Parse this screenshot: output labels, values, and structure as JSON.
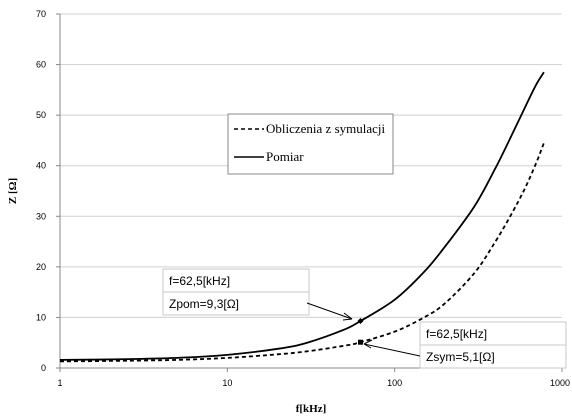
{
  "chart_data": {
    "type": "line",
    "xlabel": "f[kHz]",
    "ylabel": "Z [Ω]",
    "x_scale": "log",
    "xlim": [
      1,
      1000
    ],
    "ylim": [
      0,
      70
    ],
    "x_ticks": [
      1,
      10,
      100,
      1000
    ],
    "x_tick_labels": [
      "1",
      "10",
      "100",
      "1000"
    ],
    "y_ticks": [
      0,
      10,
      20,
      30,
      40,
      50,
      60,
      70
    ],
    "y_tick_labels": [
      "0",
      "10",
      "20",
      "30",
      "40",
      "50",
      "60",
      "70"
    ],
    "grid": "horizontal",
    "legend_position": "center-right",
    "series": [
      {
        "name": "Obliczenia z symulacji",
        "style": "dashed",
        "color": "#000000",
        "x": [
          1,
          2,
          5,
          10,
          20,
          30,
          50,
          62.5,
          100,
          150,
          200,
          300,
          400,
          500,
          600,
          700,
          780
        ],
        "y": [
          1.3,
          1.4,
          1.6,
          2.0,
          2.7,
          3.3,
          4.4,
          5.1,
          7.2,
          10.0,
          12.8,
          18.8,
          25.0,
          30.5,
          35.5,
          40.5,
          44.5
        ]
      },
      {
        "name": "Pomiar",
        "style": "solid",
        "color": "#000000",
        "x": [
          1,
          2,
          5,
          10,
          20,
          30,
          50,
          62.5,
          100,
          150,
          200,
          300,
          400,
          500,
          600,
          700,
          780
        ],
        "y": [
          1.6,
          1.7,
          2.0,
          2.6,
          3.8,
          5.0,
          7.6,
          9.3,
          13.5,
          19.0,
          24.0,
          32.0,
          39.5,
          46.0,
          51.5,
          56.0,
          58.5
        ]
      }
    ],
    "points": [
      {
        "x": 62.5,
        "y": 9.3,
        "series": "Pomiar"
      },
      {
        "x": 62.5,
        "y": 5.1,
        "series": "Obliczenia z symulacji"
      }
    ],
    "annotations": [
      {
        "lines": [
          "f=62,5[kHz]",
          "Zpom=9,3[Ω]"
        ],
        "target_x": 62.5,
        "target_y": 9.3
      },
      {
        "lines": [
          "f=62,5[kHz]",
          "Zsym=5,1[Ω]"
        ],
        "target_x": 62.5,
        "target_y": 5.1
      }
    ]
  }
}
